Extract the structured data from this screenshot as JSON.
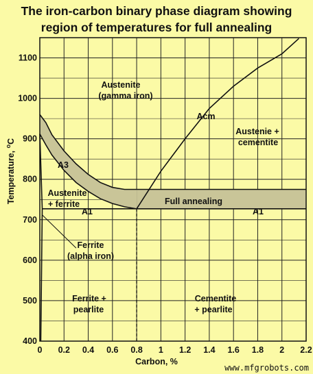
{
  "chart_data": {
    "type": "phase-diagram",
    "title": "The iron-carbon binary phase diagram showing",
    "subtitle": "region of temperatures for full annealing",
    "xlabel": "Carbon, %",
    "ylabel": "Temperature, °C",
    "xlim": [
      0,
      2.2
    ],
    "ylim": [
      400,
      1150
    ],
    "x_ticks": [
      "0",
      "0.2",
      "0.4",
      "0.6",
      "0.8",
      "1",
      "1.2",
      "1.4",
      "1.6",
      "1.8",
      "2",
      "2.2"
    ],
    "y_ticks": [
      "400",
      "500",
      "600",
      "700",
      "800",
      "900",
      "1000",
      "1100"
    ],
    "grid": true,
    "lines": {
      "A3_upper": [
        [
          0,
          960
        ],
        [
          0.05,
          940
        ],
        [
          0.1,
          910
        ],
        [
          0.2,
          870
        ],
        [
          0.3,
          838
        ],
        [
          0.4,
          812
        ],
        [
          0.5,
          792
        ],
        [
          0.6,
          780
        ],
        [
          0.7,
          775
        ],
        [
          0.8,
          775
        ]
      ],
      "A3_lower": [
        [
          0,
          912
        ],
        [
          0.05,
          885
        ],
        [
          0.1,
          860
        ],
        [
          0.2,
          822
        ],
        [
          0.3,
          792
        ],
        [
          0.4,
          770
        ],
        [
          0.5,
          752
        ],
        [
          0.6,
          740
        ],
        [
          0.7,
          732
        ],
        [
          0.8,
          727
        ]
      ],
      "Acm": [
        [
          0.8,
          727
        ],
        [
          1.0,
          820
        ],
        [
          1.2,
          900
        ],
        [
          1.4,
          975
        ],
        [
          1.6,
          1030
        ],
        [
          1.8,
          1075
        ],
        [
          2.0,
          1110
        ],
        [
          2.14,
          1148
        ]
      ],
      "A1": [
        [
          0.02,
          727
        ],
        [
          2.2,
          727
        ]
      ],
      "full_annealing_band": [
        [
          0.8,
          727
        ],
        [
          2.2,
          775
        ]
      ],
      "ferrite_boundary": [
        [
          0,
          912
        ],
        [
          0.02,
          727
        ],
        [
          0.008,
          400
        ]
      ],
      "eutectoid_dashed": [
        [
          0.8,
          727
        ],
        [
          0.8,
          400
        ]
      ]
    },
    "labels": {
      "austenite": "Austenite",
      "gamma": "(gamma iron)",
      "acm": "Acm",
      "austenie_cem_1": "Austenie +",
      "austenie_cem_2": "cementite",
      "a3": "A3",
      "aus_ferrite_1": "Austenite",
      "aus_ferrite_2": "+ ferrite",
      "a1_left": "A1",
      "full_annealing": "Full annealing",
      "a1_right": "A1",
      "ferrite": "Ferrite",
      "alpha": "(alpha iron)",
      "fp_1": "Ferrite +",
      "fp_2": "pearlite",
      "cp_1": "Cementite",
      "cp_2": "+ pearlite"
    }
  },
  "watermark": "www.mfgrobots.com",
  "colors": {
    "background": "#fbfaa6",
    "band_fill": "#c9c598",
    "line": "#111111"
  }
}
